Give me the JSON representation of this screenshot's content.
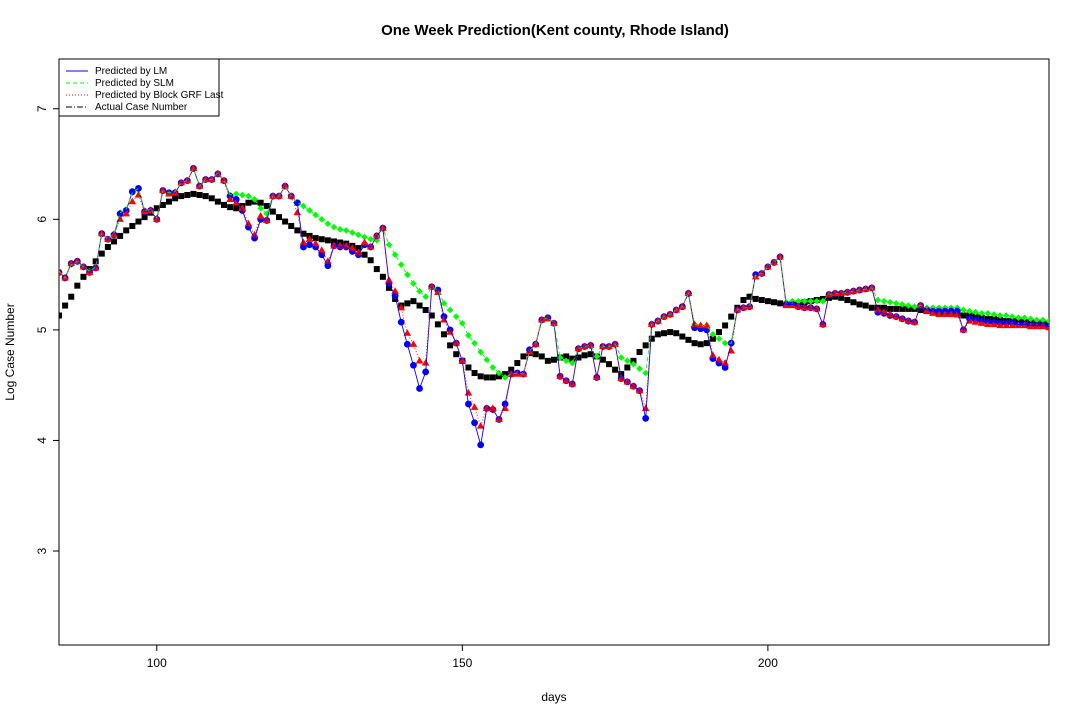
{
  "chart_data": {
    "type": "line",
    "title": "One Week Prediction(Kent county, Rhode Island)",
    "xlabel": "days",
    "ylabel": "Log Case Number",
    "xlim": [
      84,
      246
    ],
    "ylim": [
      2.15,
      7.45
    ],
    "x_ticks": [
      100,
      150,
      200
    ],
    "y_ticks": [
      3,
      4,
      5,
      6,
      7
    ],
    "grid": false,
    "legend_position": "top-left",
    "series": [
      {
        "name": "Predicted by LM",
        "color": "#0000ff",
        "line_style": "solid",
        "marker": "circle",
        "x_start": 84,
        "values": [
          5.52,
          5.47,
          5.6,
          5.62,
          5.57,
          5.52,
          5.56,
          5.87,
          5.82,
          5.86,
          6.05,
          6.08,
          6.25,
          6.28,
          6.07,
          6.08,
          6.0,
          6.26,
          6.24,
          6.24,
          6.33,
          6.35,
          6.46,
          6.3,
          6.36,
          6.36,
          6.41,
          6.35,
          6.21,
          6.18,
          6.08,
          5.93,
          5.83,
          6.0,
          5.99,
          6.21,
          6.21,
          6.3,
          6.21,
          6.15,
          5.75,
          5.77,
          5.75,
          5.68,
          5.58,
          5.76,
          5.75,
          5.75,
          5.71,
          5.68,
          5.77,
          5.75,
          5.85,
          5.92,
          5.42,
          5.31,
          5.07,
          4.87,
          4.68,
          4.47,
          4.62,
          5.39,
          5.36,
          5.12,
          5.0,
          4.88,
          4.72,
          4.33,
          4.16,
          3.96,
          4.29,
          4.28,
          4.19,
          4.33,
          4.6,
          4.61,
          4.6,
          4.82,
          4.87,
          5.09,
          5.11,
          5.06,
          4.58,
          4.54,
          4.51,
          4.83,
          4.85,
          4.86,
          4.57,
          4.85,
          4.85,
          4.87,
          4.56,
          4.53,
          4.49,
          4.45,
          4.2,
          5.05,
          5.08,
          5.12,
          5.14,
          5.18,
          5.21,
          5.33,
          5.02,
          5.01,
          5.0,
          4.74,
          4.7,
          4.66,
          4.88,
          5.18,
          5.2,
          5.21,
          5.5,
          5.51,
          5.57,
          5.61,
          5.66,
          5.23,
          5.23,
          5.21,
          5.2,
          5.2,
          5.19,
          5.05,
          5.32,
          5.33,
          5.33,
          5.34,
          5.35,
          5.36,
          5.37,
          5.38,
          5.16,
          5.15,
          5.13,
          5.12,
          5.1,
          5.08,
          5.07,
          5.22,
          5.18,
          5.17,
          5.17,
          5.17,
          5.17,
          5.17,
          5.0,
          5.1,
          5.09,
          5.08,
          5.07,
          5.07,
          5.06,
          5.06,
          5.06,
          5.05,
          5.05,
          5.04,
          5.04,
          5.04,
          5.03,
          5.1
        ]
      },
      {
        "name": "Predicted by SLM",
        "color": "#00ff00",
        "line_style": "dashed",
        "marker": "diamond",
        "x_start": 84,
        "values": [
          5.53,
          5.47,
          5.59,
          5.62,
          5.57,
          5.53,
          5.57,
          5.87,
          5.82,
          5.87,
          6.06,
          6.09,
          6.24,
          6.28,
          6.08,
          6.09,
          6.01,
          6.26,
          6.24,
          6.25,
          6.33,
          6.35,
          6.46,
          6.3,
          6.36,
          6.36,
          6.42,
          6.35,
          6.22,
          6.23,
          6.22,
          6.21,
          6.18,
          6.1,
          6.05,
          6.21,
          6.21,
          6.3,
          6.21,
          6.15,
          6.12,
          6.08,
          6.04,
          6.0,
          5.96,
          5.93,
          5.91,
          5.9,
          5.88,
          5.86,
          5.84,
          5.82,
          5.81,
          5.92,
          5.77,
          5.68,
          5.59,
          5.5,
          5.42,
          5.35,
          5.3,
          5.39,
          5.36,
          5.24,
          5.18,
          5.12,
          5.06,
          4.95,
          4.88,
          4.8,
          4.73,
          4.66,
          4.61,
          4.57,
          4.6,
          4.61,
          4.6,
          4.81,
          4.87,
          5.09,
          5.11,
          5.06,
          4.75,
          4.72,
          4.7,
          4.83,
          4.85,
          4.86,
          4.76,
          4.85,
          4.85,
          4.87,
          4.75,
          4.72,
          4.69,
          4.65,
          4.61,
          5.05,
          5.08,
          5.12,
          5.14,
          5.18,
          5.21,
          5.33,
          5.05,
          5.04,
          5.04,
          4.96,
          4.92,
          4.88,
          4.88,
          5.18,
          5.2,
          5.21,
          5.5,
          5.51,
          5.57,
          5.61,
          5.66,
          5.25,
          5.26,
          5.26,
          5.26,
          5.26,
          5.26,
          5.26,
          5.32,
          5.33,
          5.33,
          5.34,
          5.35,
          5.36,
          5.37,
          5.38,
          5.27,
          5.26,
          5.25,
          5.24,
          5.23,
          5.22,
          5.21,
          5.22,
          5.2,
          5.2,
          5.2,
          5.2,
          5.2,
          5.2,
          5.18,
          5.17,
          5.16,
          5.15,
          5.15,
          5.14,
          5.13,
          5.13,
          5.12,
          5.11,
          5.11,
          5.1,
          5.09,
          5.09,
          5.08,
          5.1
        ]
      },
      {
        "name": "Predicted by Block GRF Last",
        "color": "#ff0000",
        "line_style": "dotted",
        "marker": "triangle",
        "x_start": 84,
        "values": [
          5.52,
          5.47,
          5.6,
          5.62,
          5.57,
          5.52,
          5.56,
          5.87,
          5.82,
          5.86,
          6.0,
          6.05,
          6.16,
          6.22,
          6.07,
          6.08,
          6.0,
          6.26,
          6.23,
          6.24,
          6.33,
          6.35,
          6.46,
          6.3,
          6.36,
          6.36,
          6.41,
          6.35,
          6.18,
          6.15,
          6.1,
          5.96,
          5.86,
          6.03,
          5.99,
          6.21,
          6.21,
          6.3,
          6.21,
          6.06,
          5.79,
          5.82,
          5.78,
          5.72,
          5.62,
          5.76,
          5.76,
          5.76,
          5.74,
          5.7,
          5.79,
          5.75,
          5.85,
          5.92,
          5.45,
          5.35,
          5.2,
          4.97,
          4.87,
          4.72,
          4.7,
          5.39,
          5.34,
          5.09,
          4.98,
          4.88,
          4.72,
          4.43,
          4.3,
          4.13,
          4.29,
          4.29,
          4.19,
          4.29,
          4.6,
          4.6,
          4.6,
          4.8,
          4.87,
          5.09,
          5.1,
          5.06,
          4.58,
          4.54,
          4.51,
          4.83,
          4.85,
          4.86,
          4.57,
          4.85,
          4.85,
          4.87,
          4.56,
          4.53,
          4.49,
          4.45,
          4.29,
          5.05,
          5.08,
          5.12,
          5.14,
          5.18,
          5.21,
          5.33,
          5.05,
          5.04,
          5.04,
          4.77,
          4.73,
          4.7,
          4.81,
          5.18,
          5.2,
          5.21,
          5.48,
          5.51,
          5.57,
          5.61,
          5.66,
          5.22,
          5.22,
          5.21,
          5.2,
          5.2,
          5.19,
          5.05,
          5.32,
          5.33,
          5.33,
          5.34,
          5.35,
          5.36,
          5.37,
          5.38,
          5.18,
          5.16,
          5.14,
          5.12,
          5.1,
          5.08,
          5.07,
          5.22,
          5.17,
          5.15,
          5.14,
          5.14,
          5.14,
          5.14,
          5.0,
          5.08,
          5.07,
          5.06,
          5.05,
          5.05,
          5.04,
          5.04,
          5.04,
          5.04,
          5.04,
          5.03,
          5.03,
          5.03,
          5.02,
          5.1
        ]
      },
      {
        "name": "Actual Case Number",
        "color": "#000000",
        "line_style": "dotdash",
        "marker": "square",
        "x_start": 84,
        "values": [
          5.13,
          5.22,
          5.3,
          5.4,
          5.48,
          5.55,
          5.62,
          5.69,
          5.75,
          5.8,
          5.85,
          5.9,
          5.94,
          5.98,
          6.02,
          6.06,
          6.1,
          6.13,
          6.16,
          6.19,
          6.21,
          6.22,
          6.23,
          6.22,
          6.21,
          6.19,
          6.16,
          6.13,
          6.11,
          6.1,
          6.12,
          6.15,
          6.16,
          6.15,
          6.12,
          6.07,
          6.02,
          5.98,
          5.94,
          5.9,
          5.87,
          5.85,
          5.83,
          5.82,
          5.81,
          5.8,
          5.79,
          5.78,
          5.76,
          5.74,
          5.68,
          5.63,
          5.55,
          5.48,
          5.38,
          5.28,
          5.22,
          5.24,
          5.26,
          5.22,
          5.18,
          5.13,
          5.05,
          4.96,
          4.86,
          4.78,
          4.72,
          4.66,
          4.61,
          4.58,
          4.57,
          4.57,
          4.58,
          4.6,
          4.64,
          4.7,
          4.76,
          4.79,
          4.78,
          4.76,
          4.72,
          4.73,
          4.75,
          4.76,
          4.74,
          4.75,
          4.77,
          4.78,
          4.76,
          4.73,
          4.69,
          4.64,
          4.6,
          4.66,
          4.72,
          4.8,
          4.86,
          4.92,
          4.96,
          4.97,
          4.98,
          4.97,
          4.94,
          4.91,
          4.88,
          4.87,
          4.88,
          4.92,
          4.98,
          5.04,
          5.12,
          5.2,
          5.27,
          5.3,
          5.28,
          5.27,
          5.26,
          5.25,
          5.24,
          5.23,
          5.23,
          5.24,
          5.25,
          5.26,
          5.27,
          5.28,
          5.29,
          5.3,
          5.29,
          5.27,
          5.25,
          5.23,
          5.22,
          5.2,
          5.2,
          5.2,
          5.19,
          5.19,
          5.19,
          5.19,
          5.19,
          5.18,
          5.17,
          5.16,
          5.16,
          5.15,
          5.15,
          5.14,
          5.13,
          5.13,
          5.12,
          5.11,
          5.1,
          5.1,
          5.09,
          5.08,
          5.08,
          5.08,
          5.07,
          5.07,
          5.06,
          5.06,
          5.05,
          5.05
        ]
      }
    ]
  }
}
